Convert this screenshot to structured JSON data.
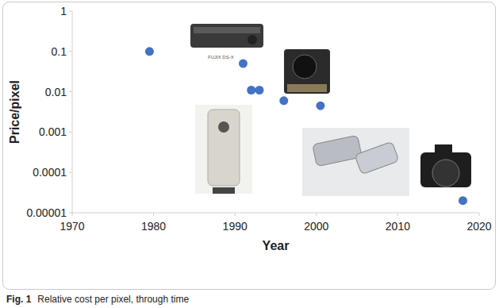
{
  "chart_data": {
    "type": "scatter",
    "x_label": "Year",
    "y_label": "Price/pixel",
    "caption_label": "Fig. 1",
    "caption": "Relative cost per pixel, through time",
    "annotations": [
      "FUJIX DS-X"
    ],
    "x": [
      1979.5,
      1991,
      1992,
      1993,
      1996,
      2000.5,
      2018
    ],
    "values": [
      0.1,
      0.05,
      0.011,
      0.011,
      0.006,
      0.0045,
      2e-05
    ],
    "color": "#4472c4",
    "marker": "circle",
    "xlim": [
      1970,
      2020
    ],
    "xticks": [
      1970,
      1980,
      1990,
      2000,
      2010,
      2020
    ],
    "ylim": [
      1e-05,
      1
    ],
    "yticks": [
      1,
      0.1,
      0.01,
      0.001,
      0.0001,
      1e-05
    ],
    "log": "y",
    "grid": false
  }
}
